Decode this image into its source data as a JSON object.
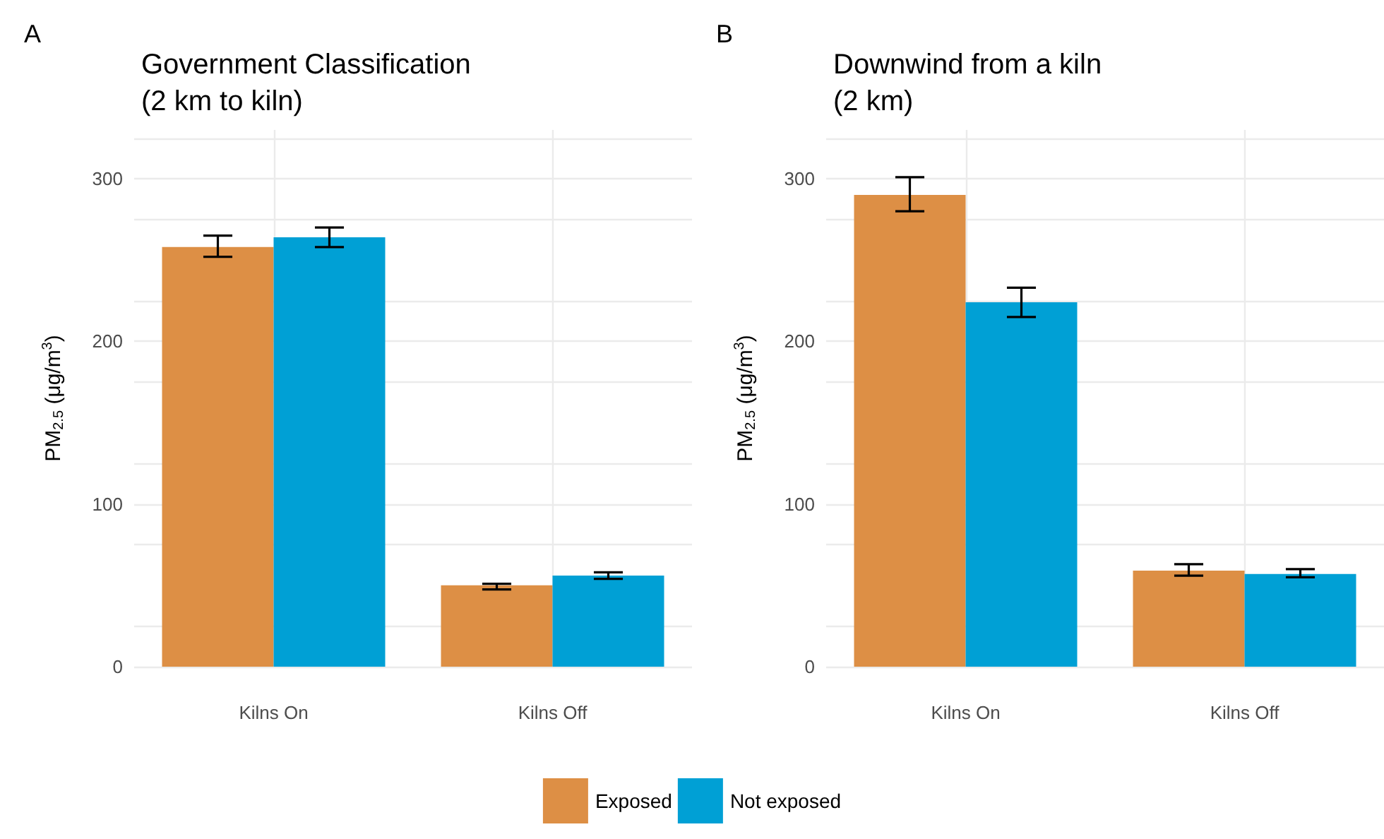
{
  "chart_data": [
    {
      "type": "bar",
      "title": "Government Classification\n(2 km to kiln)",
      "ylabel": "PM$_{2.5}$ (μg/m$^{3}$)",
      "annotations": [
        "A"
      ],
      "categories": [
        "Kilns On",
        "Kilns Off"
      ],
      "ylim": [
        0,
        330
      ],
      "yticks": [
        0,
        100,
        200,
        300
      ],
      "grid": true,
      "legend": "bottom",
      "series": [
        {
          "name": "Exposed",
          "color": "#dd8f45",
          "values": [
            258,
            50
          ],
          "errors": [
            [
              252,
              265
            ],
            [
              47.5,
              51
            ]
          ]
        },
        {
          "name": "Not exposed",
          "color": "#00a0d5",
          "values": [
            264,
            56
          ],
          "errors": [
            [
              258,
              270
            ],
            [
              54,
              58
            ]
          ]
        }
      ]
    },
    {
      "type": "bar",
      "title": "Downwind from a kiln\n(2 km)",
      "ylabel": "PM$_{2.5}$ (μg/m$^{3}$)",
      "annotations": [
        "B"
      ],
      "categories": [
        "Kilns On",
        "Kilns Off"
      ],
      "ylim": [
        0,
        330
      ],
      "yticks": [
        0,
        100,
        200,
        300
      ],
      "grid": true,
      "series": [
        {
          "name": "Exposed",
          "color": "#dd8f45",
          "values": [
            290,
            59
          ],
          "errors": [
            [
              280,
              301
            ],
            [
              56,
              63
            ]
          ]
        },
        {
          "name": "Not exposed",
          "color": "#00a0d5",
          "values": [
            224,
            57
          ],
          "errors": [
            [
              215,
              233
            ],
            [
              55,
              60
            ]
          ]
        }
      ]
    }
  ]
}
